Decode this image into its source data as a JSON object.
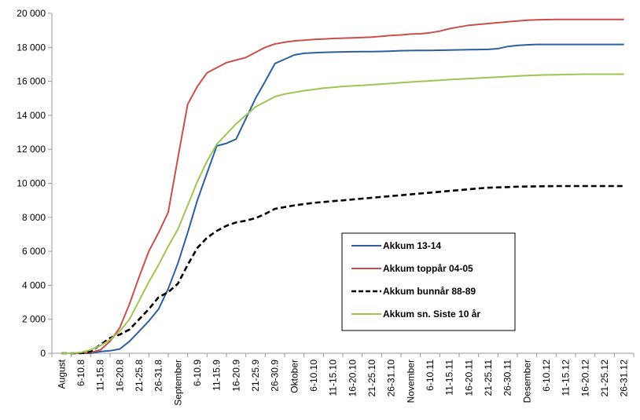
{
  "chart_data": {
    "type": "line",
    "categories": [
      "August",
      "6-10.8",
      "11-15.8",
      "16-20.8",
      "21-25.8",
      "26-31.8",
      "September",
      "6-10.9",
      "11-15.9",
      "16-20.9",
      "21-25.9",
      "26-30.9",
      "Oktober",
      "6-10.10",
      "11-15.10",
      "16-20.10",
      "21-25.10",
      "26-31.10",
      "November",
      "6-10.11",
      "11-15.11",
      "16-20.11",
      "21-25.11",
      "26-30.11",
      "Desember",
      "6-10.12",
      "11-15.12",
      "16-20.12",
      "21-25.12",
      "26-31.12"
    ],
    "x": [
      0,
      0.5,
      1,
      1.5,
      2,
      2.5,
      3,
      3.5,
      4,
      4.5,
      5,
      5.5,
      6,
      6.5,
      7,
      7.5,
      8,
      8.5,
      9,
      9.5,
      10,
      10.5,
      11,
      11.5,
      12,
      12.5,
      13,
      13.5,
      14,
      14.5,
      15,
      15.5,
      16,
      16.5,
      17,
      17.5,
      18,
      18.5,
      19,
      19.5,
      20,
      20.5,
      21,
      21.5,
      22,
      22.5,
      23,
      23.5,
      24,
      24.5,
      25,
      25.5,
      26,
      26.5,
      27,
      27.5,
      28,
      28.5,
      29
    ],
    "series": [
      {
        "name": "Akkum 13-14",
        "color": "#2e5f9e",
        "dash": "solid",
        "values": [
          0,
          0,
          0,
          0,
          100,
          150,
          250,
          700,
          1300,
          1900,
          2600,
          3800,
          5300,
          7100,
          9000,
          10600,
          12200,
          12350,
          12600,
          13800,
          15000,
          16000,
          17050,
          17300,
          17550,
          17650,
          17680,
          17700,
          17720,
          17730,
          17740,
          17745,
          17750,
          17760,
          17780,
          17800,
          17810,
          17815,
          17820,
          17830,
          17840,
          17850,
          17860,
          17870,
          17880,
          17920,
          18050,
          18110,
          18150,
          18170,
          18170,
          18170,
          18170,
          18170,
          18170,
          18170,
          18170,
          18170,
          18170
        ]
      },
      {
        "name": "Akkum toppår 04-05",
        "color": "#c9504a",
        "dash": "solid",
        "values": [
          0,
          0,
          0,
          50,
          200,
          700,
          1500,
          2900,
          4500,
          6000,
          7100,
          8300,
          11500,
          14650,
          15700,
          16500,
          16800,
          17100,
          17250,
          17400,
          17700,
          18000,
          18200,
          18300,
          18380,
          18420,
          18460,
          18490,
          18520,
          18540,
          18560,
          18580,
          18600,
          18650,
          18700,
          18730,
          18780,
          18800,
          18860,
          18950,
          19100,
          19200,
          19300,
          19350,
          19400,
          19450,
          19500,
          19550,
          19600,
          19620,
          19630,
          19640,
          19640,
          19640,
          19640,
          19640,
          19640,
          19640,
          19640
        ]
      },
      {
        "name": "Akkum bunnår 88-89",
        "color": "#000000",
        "dash": "dashed",
        "values": [
          0,
          0,
          0,
          100,
          500,
          900,
          1100,
          1400,
          2000,
          2600,
          3300,
          3600,
          4100,
          5200,
          6200,
          6800,
          7200,
          7500,
          7700,
          7800,
          7950,
          8200,
          8500,
          8600,
          8700,
          8780,
          8850,
          8900,
          8950,
          9000,
          9050,
          9100,
          9150,
          9200,
          9250,
          9300,
          9350,
          9400,
          9450,
          9500,
          9550,
          9600,
          9650,
          9700,
          9740,
          9760,
          9780,
          9800,
          9810,
          9820,
          9830,
          9840,
          9840,
          9840,
          9840,
          9840,
          9840,
          9840,
          9840
        ]
      },
      {
        "name": "Akkum sn. Siste 10 år",
        "color": "#9dc552",
        "dash": "solid",
        "values": [
          0,
          0,
          50,
          200,
          450,
          800,
          1300,
          2000,
          3100,
          4200,
          5200,
          6300,
          7300,
          8700,
          10100,
          11300,
          12300,
          12900,
          13500,
          14000,
          14500,
          14800,
          15100,
          15250,
          15350,
          15450,
          15520,
          15600,
          15650,
          15700,
          15730,
          15760,
          15800,
          15840,
          15880,
          15920,
          15960,
          16000,
          16030,
          16060,
          16100,
          16130,
          16160,
          16190,
          16220,
          16250,
          16280,
          16310,
          16340,
          16360,
          16380,
          16390,
          16400,
          16410,
          16420,
          16420,
          16420,
          16420,
          16420
        ]
      }
    ],
    "yticks": [
      "0",
      "2 000",
      "4 000",
      "6 000",
      "8 000",
      "10 000",
      "12 000",
      "14 000",
      "16 000",
      "18 000",
      "20 000"
    ],
    "ylim": [
      0,
      20000
    ],
    "title": "",
    "xlabel": "",
    "ylabel": "",
    "grid": false,
    "legend_position": "center-right"
  }
}
